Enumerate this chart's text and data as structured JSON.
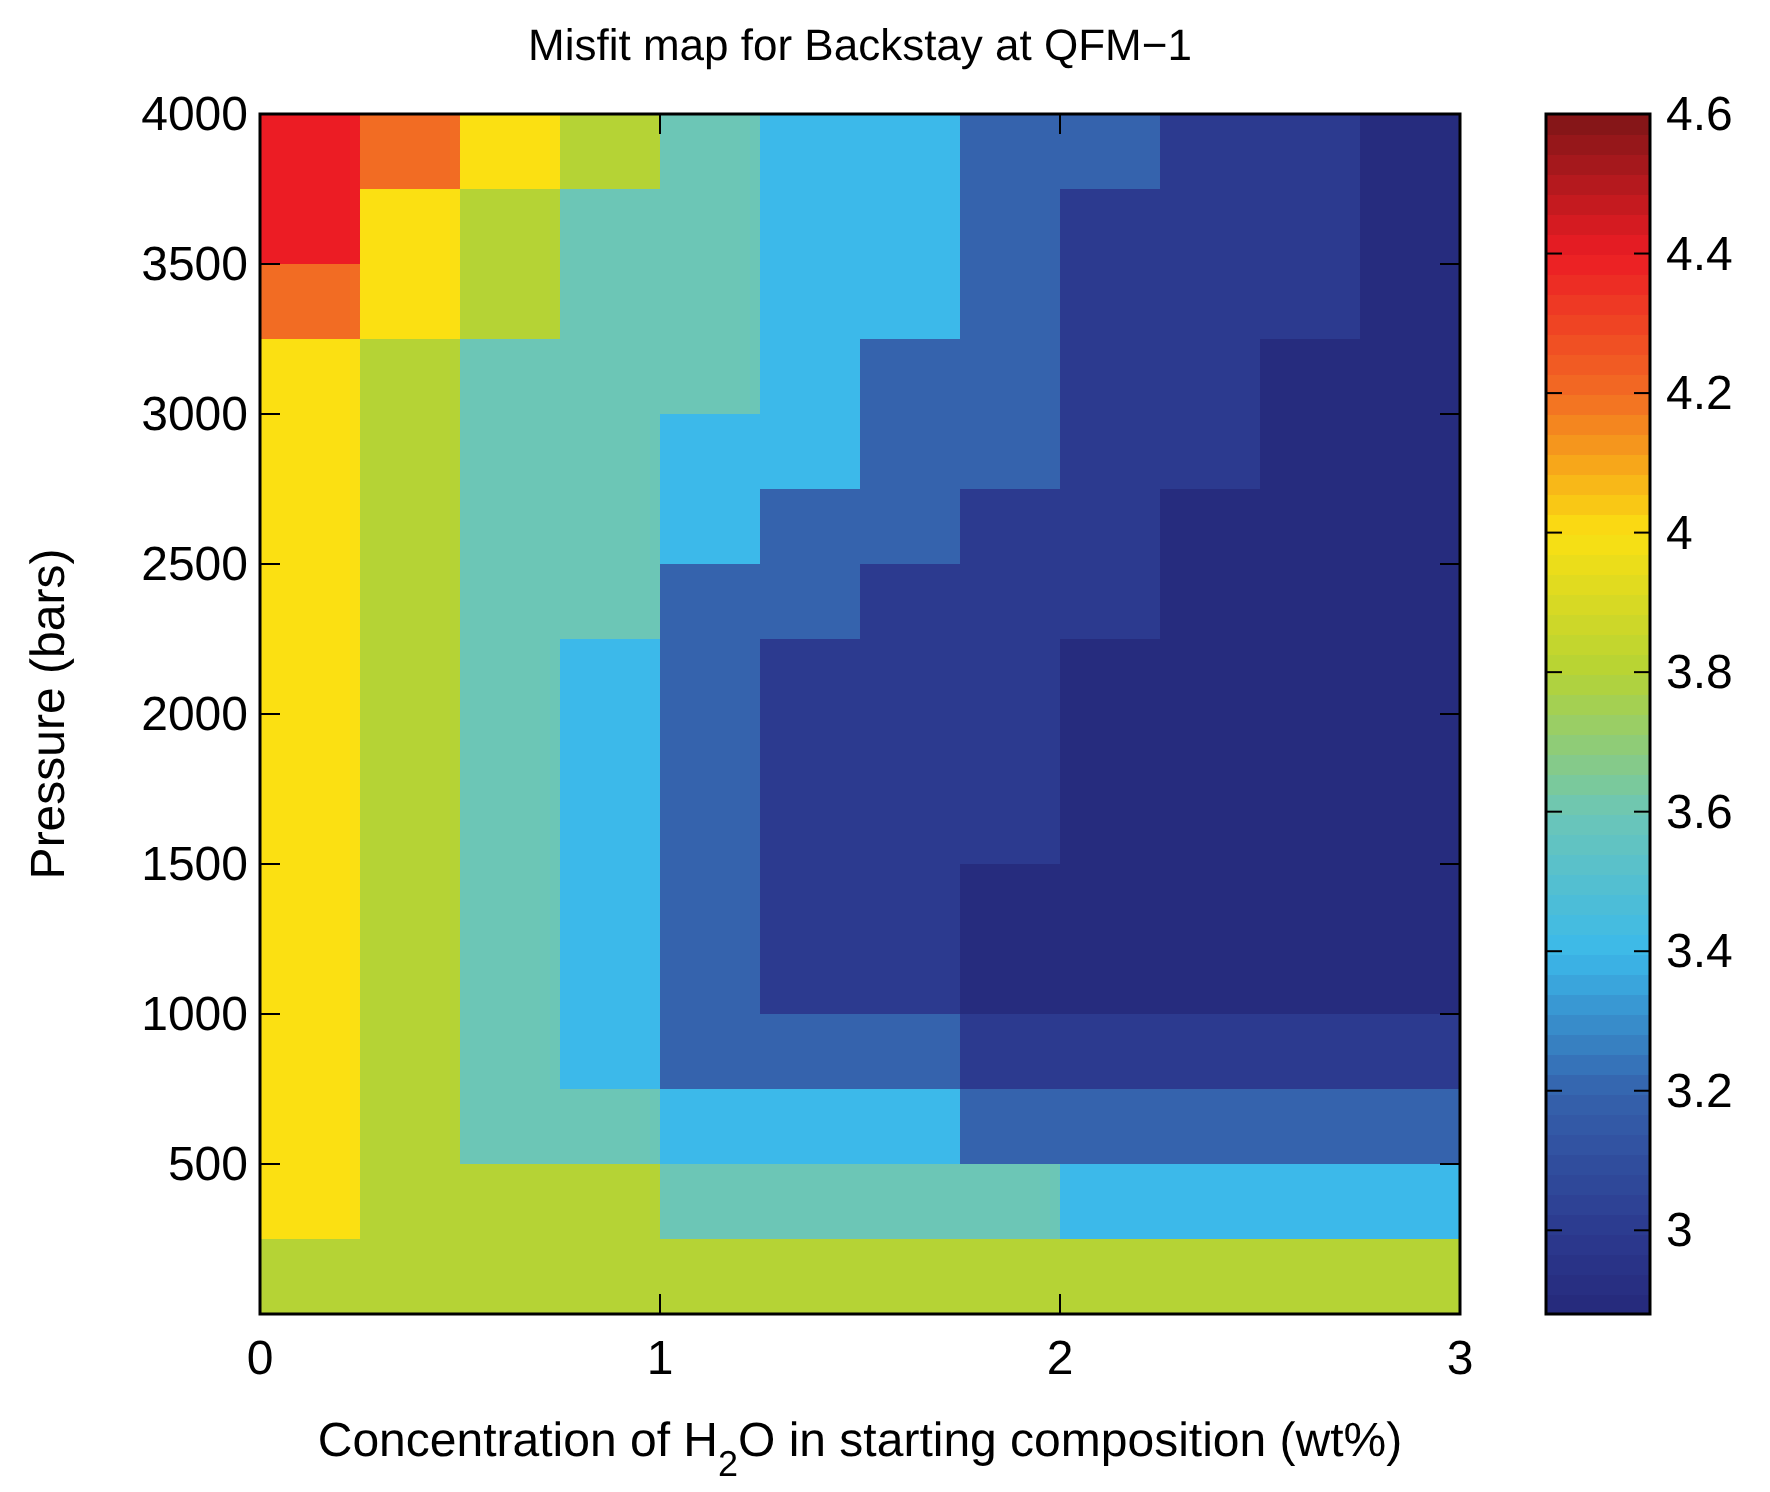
{
  "chart_data": {
    "type": "heatmap",
    "title": "Misfit map for Backstay at QFM−1",
    "xlabel": "Concentration of H$_{2}$O in starting composition (wt%)",
    "ylabel": "Pressure (bars)",
    "x": [
      0.125,
      0.375,
      0.625,
      0.875,
      1.125,
      1.375,
      1.625,
      1.875,
      2.125,
      2.375,
      2.625,
      2.875
    ],
    "y": [
      3875,
      3625,
      3375,
      3125,
      2875,
      2625,
      2375,
      2125,
      1875,
      1625,
      1375,
      1125,
      875,
      625,
      375,
      125
    ],
    "cells": [
      [
        4.4,
        4.2,
        4.0,
        3.8,
        3.6,
        3.4,
        3.4,
        3.2,
        3.2,
        3.0,
        3.0,
        2.9
      ],
      [
        4.4,
        4.0,
        3.8,
        3.6,
        3.6,
        3.4,
        3.4,
        3.2,
        3.0,
        3.0,
        3.0,
        2.9
      ],
      [
        4.2,
        4.0,
        3.8,
        3.6,
        3.6,
        3.4,
        3.4,
        3.2,
        3.0,
        3.0,
        3.0,
        2.9
      ],
      [
        4.0,
        3.8,
        3.6,
        3.6,
        3.6,
        3.4,
        3.2,
        3.2,
        3.0,
        3.0,
        2.9,
        2.9
      ],
      [
        4.0,
        3.8,
        3.6,
        3.6,
        3.4,
        3.4,
        3.2,
        3.2,
        3.0,
        3.0,
        2.9,
        2.9
      ],
      [
        4.0,
        3.8,
        3.6,
        3.6,
        3.4,
        3.2,
        3.2,
        3.0,
        3.0,
        2.9,
        2.9,
        2.9
      ],
      [
        4.0,
        3.8,
        3.6,
        3.6,
        3.2,
        3.2,
        3.0,
        3.0,
        3.0,
        2.9,
        2.9,
        2.9
      ],
      [
        4.0,
        3.8,
        3.6,
        3.4,
        3.2,
        3.0,
        3.0,
        3.0,
        2.9,
        2.9,
        2.9,
        2.9
      ],
      [
        4.0,
        3.8,
        3.6,
        3.4,
        3.2,
        3.0,
        3.0,
        3.0,
        2.9,
        2.9,
        2.9,
        2.9
      ],
      [
        4.0,
        3.8,
        3.6,
        3.4,
        3.2,
        3.0,
        3.0,
        3.0,
        2.9,
        2.9,
        2.9,
        2.9
      ],
      [
        4.0,
        3.8,
        3.6,
        3.4,
        3.2,
        3.0,
        3.0,
        2.9,
        2.9,
        2.9,
        2.9,
        2.9
      ],
      [
        4.0,
        3.8,
        3.6,
        3.4,
        3.2,
        3.0,
        3.0,
        2.9,
        2.9,
        2.9,
        2.9,
        2.9
      ],
      [
        4.0,
        3.8,
        3.6,
        3.4,
        3.2,
        3.2,
        3.2,
        3.0,
        3.0,
        3.0,
        3.0,
        3.0
      ],
      [
        4.0,
        3.8,
        3.6,
        3.6,
        3.4,
        3.4,
        3.4,
        3.2,
        3.2,
        3.2,
        3.2,
        3.2
      ],
      [
        4.0,
        3.8,
        3.8,
        3.8,
        3.6,
        3.6,
        3.6,
        3.6,
        3.4,
        3.4,
        3.4,
        3.4
      ],
      [
        3.8,
        3.8,
        3.8,
        3.8,
        3.8,
        3.8,
        3.8,
        3.8,
        3.8,
        3.8,
        3.8,
        3.8
      ]
    ],
    "xlim": [
      0,
      3
    ],
    "xticks": [
      0,
      1,
      2,
      3
    ],
    "ylim": [
      0,
      4000
    ],
    "yticks": [
      500,
      1000,
      1500,
      2000,
      2500,
      3000,
      3500,
      4000
    ],
    "clim": [
      2.88,
      4.6
    ],
    "cticks": [
      3,
      3.2,
      3.4,
      3.6,
      3.8,
      4,
      4.2,
      4.4,
      4.6
    ],
    "colors": [
      "#25297a",
      "#2c3a8f",
      "#3563ad",
      "#3cb9ea",
      "#6cc6b6",
      "#b5d335",
      "#fbe012",
      "#f26c23",
      "#ec1c24",
      "#7e1517"
    ]
  }
}
